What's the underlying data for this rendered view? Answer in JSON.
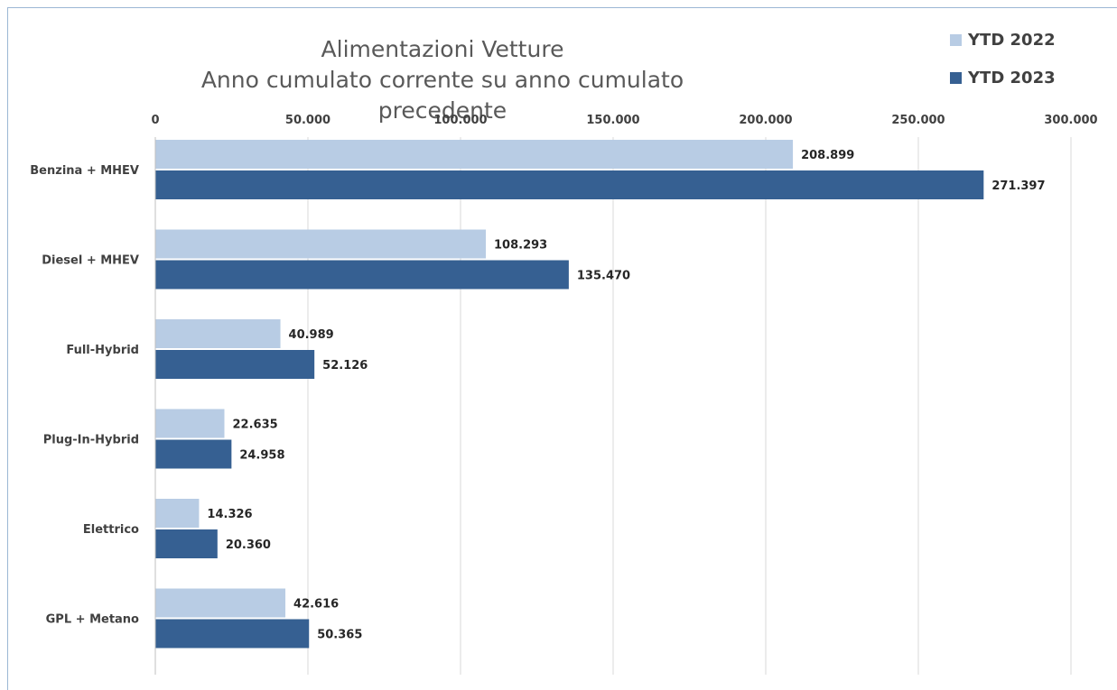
{
  "chart_data": {
    "type": "bar",
    "orientation": "horizontal",
    "title": "Alimentazioni Vetture",
    "subtitle": "Anno cumulato corrente su anno cumulato precedente",
    "categories": [
      "Benzina + MHEV",
      "Diesel + MHEV",
      "Full-Hybrid",
      "Plug-In-Hybrid",
      "Elettrico",
      "GPL + Metano"
    ],
    "series": [
      {
        "name": "YTD 2022",
        "color": "#b8cce4",
        "values": [
          208899,
          108293,
          40989,
          22635,
          14326,
          42616
        ],
        "labels": [
          "208.899",
          "108.293",
          "40.989",
          "22.635",
          "14.326",
          "42.616"
        ]
      },
      {
        "name": "YTD 2023",
        "color": "#366092",
        "values": [
          271397,
          135470,
          52126,
          24958,
          20360,
          50365
        ],
        "labels": [
          "271.397",
          "135.470",
          "52.126",
          "24.958",
          "20.360",
          "50.365"
        ]
      }
    ],
    "xlim": [
      0,
      300000
    ],
    "x_ticks": [
      0,
      50000,
      100000,
      150000,
      200000,
      250000,
      300000
    ],
    "x_tick_labels": [
      "0",
      "50.000",
      "100.000",
      "150.000",
      "200.000",
      "250.000",
      "300.000"
    ],
    "axis_position": "top",
    "grid": true,
    "legend_position": "top-right"
  }
}
